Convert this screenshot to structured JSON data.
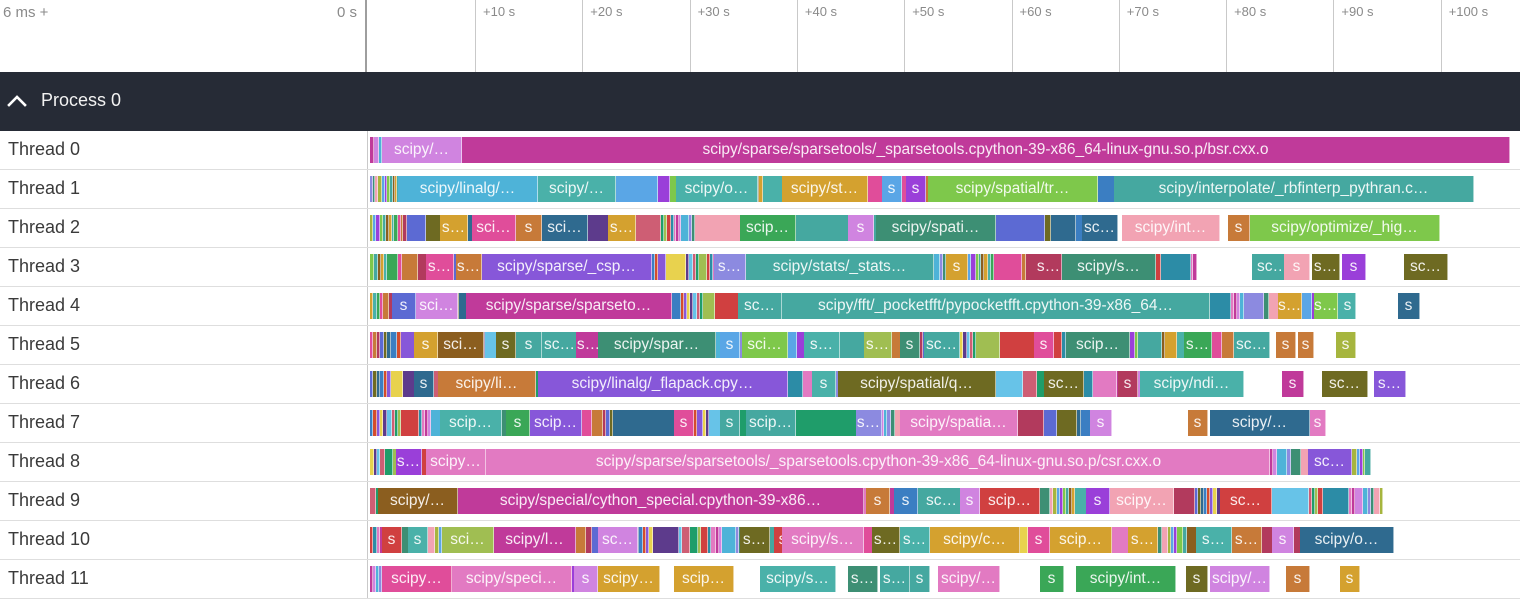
{
  "ruler": {
    "range_label": "6 ms +",
    "offset_label": "0 s",
    "ticks": [
      "+10 s",
      "+20 s",
      "+30 s",
      "+40 s",
      "+50 s",
      "+60 s",
      "+70 s",
      "+80 s",
      "+90 s",
      "+100 s"
    ]
  },
  "process": {
    "title": "Process 0",
    "collapse_icon": "chevron-up-icon"
  },
  "palette": [
    "#c03a9a",
    "#d084e0",
    "#4eb3d8",
    "#8c8ae0",
    "#3d8f74",
    "#f2a3b3",
    "#a6b53e",
    "#5aa6e6",
    "#9a3fd9",
    "#7ec84b",
    "#45a8a0",
    "#8b5e1f",
    "#d4a12f",
    "#4ab1a9",
    "#3aa757",
    "#e04d9a",
    "#c77a39",
    "#b23a5d",
    "#5c6ad3",
    "#6e6a22",
    "#2f6a8f",
    "#3b7ec2",
    "#d44c2c",
    "#8757d9",
    "#e8d24e",
    "#5d3b8c",
    "#67c3e8",
    "#ce5e74",
    "#1f9d6a",
    "#a0be52",
    "#d04040",
    "#2c8ca6",
    "#e27ac2"
  ],
  "threads": [
    {
      "label": "Thread 0",
      "segments": [
        {
          "t": "scipy/…"
        },
        {
          "t": "scipy/sparse/sparsetools/_sparsetools.cpython-39-x86_64-linux-gnu.so.p/bsr.cxx.o"
        }
      ]
    },
    {
      "label": "Thread 1",
      "segments": [
        {
          "t": "scipy/linalg/…"
        },
        {
          "t": "scipy/…"
        },
        {
          "t": "scipy/o…"
        },
        {
          "t": "scipy/st…"
        },
        {
          "t": "s"
        },
        {
          "t": "s"
        },
        {
          "t": "scipy/spatial/tr…"
        },
        {
          "t": "scipy/interpolate/_rbfinterp_pythran.c…"
        }
      ]
    },
    {
      "label": "Thread 2",
      "segments": [
        {
          "t": "s…"
        },
        {
          "t": "sci…"
        },
        {
          "t": "s"
        },
        {
          "t": "sci…"
        },
        {
          "t": "s…"
        },
        {
          "t": "scip…"
        },
        {
          "t": "s"
        },
        {
          "t": "scipy/spati…"
        },
        {
          "t": "sc…"
        },
        {
          "t": "scipy/int…"
        },
        {
          "t": "s"
        },
        {
          "t": "scipy/optimize/_hig…"
        }
      ]
    },
    {
      "label": "Thread 3",
      "segments": [
        {
          "t": "s…"
        },
        {
          "t": "s…"
        },
        {
          "t": "scipy/sparse/_csp…"
        },
        {
          "t": "s…"
        },
        {
          "t": "scipy/stats/_stats…"
        },
        {
          "t": "s"
        },
        {
          "t": "s…"
        },
        {
          "t": "scipy/s…"
        },
        {
          "t": "sc…"
        },
        {
          "t": "s"
        },
        {
          "t": "s…"
        },
        {
          "t": "s"
        },
        {
          "t": "sc…"
        }
      ]
    },
    {
      "label": "Thread 4",
      "segments": [
        {
          "t": "s"
        },
        {
          "t": "sci…"
        },
        {
          "t": "scipy/sparse/sparseto…"
        },
        {
          "t": "sc…"
        },
        {
          "t": "scipy/fft/_pocketfft/pypocketfft.cpython-39-x86_64…"
        },
        {
          "t": "s…"
        },
        {
          "t": "s…"
        },
        {
          "t": "s"
        },
        {
          "t": "s"
        }
      ]
    },
    {
      "label": "Thread 5",
      "segments": [
        {
          "t": "s"
        },
        {
          "t": "sci…"
        },
        {
          "t": "s"
        },
        {
          "t": "s"
        },
        {
          "t": "sc…"
        },
        {
          "t": "s…"
        },
        {
          "t": "scipy/spar…"
        },
        {
          "t": "s"
        },
        {
          "t": "sci…"
        },
        {
          "t": "s…"
        },
        {
          "t": "s…"
        },
        {
          "t": "s"
        },
        {
          "t": "sc…"
        },
        {
          "t": "s"
        },
        {
          "t": "scip…"
        },
        {
          "t": "s…"
        },
        {
          "t": "sc…"
        },
        {
          "t": "s"
        },
        {
          "t": "s"
        },
        {
          "t": "s"
        }
      ]
    },
    {
      "label": "Thread 6",
      "segments": [
        {
          "t": "s"
        },
        {
          "t": "scipy/li…"
        },
        {
          "t": "scipy/linalg/_flapack.cpy…"
        },
        {
          "t": "s"
        },
        {
          "t": "scipy/spatial/q…"
        },
        {
          "t": "sc…"
        },
        {
          "t": "s"
        },
        {
          "t": "scipy/ndi…"
        },
        {
          "t": "s"
        },
        {
          "t": "sc…"
        },
        {
          "t": "s…"
        }
      ]
    },
    {
      "label": "Thread 7",
      "segments": [
        {
          "t": "scip…"
        },
        {
          "t": "s"
        },
        {
          "t": "scip…"
        },
        {
          "t": "s"
        },
        {
          "t": "s"
        },
        {
          "t": "scip…"
        },
        {
          "t": "s…"
        },
        {
          "t": "scipy/spatia…"
        },
        {
          "t": "s"
        },
        {
          "t": "s"
        },
        {
          "t": "s"
        },
        {
          "t": "scipy/…"
        },
        {
          "t": "s"
        }
      ]
    },
    {
      "label": "Thread 8",
      "segments": [
        {
          "t": "s…"
        },
        {
          "t": "scipy…"
        },
        {
          "t": "scipy/sparse/sparsetools/_sparsetools.cpython-39-x86_64-linux-gnu.so.p/csr.cxx.o"
        },
        {
          "t": "sc…"
        }
      ]
    },
    {
      "label": "Thread 9",
      "segments": [
        {
          "t": "scipy/…"
        },
        {
          "t": "scipy/special/cython_special.cpython-39-x86…"
        },
        {
          "t": "s"
        },
        {
          "t": "s"
        },
        {
          "t": "sc…"
        },
        {
          "t": "s"
        },
        {
          "t": "scip…"
        },
        {
          "t": "s"
        },
        {
          "t": "scipy…"
        },
        {
          "t": "sc…"
        }
      ]
    },
    {
      "label": "Thread 10",
      "segments": [
        {
          "t": "s"
        },
        {
          "t": "s"
        },
        {
          "t": "sci…"
        },
        {
          "t": "scipy/l…"
        },
        {
          "t": "sc…"
        },
        {
          "t": "s…"
        },
        {
          "t": "s"
        },
        {
          "t": "scipy/s…"
        },
        {
          "t": "s…"
        },
        {
          "t": "s…"
        },
        {
          "t": "scipy/c…"
        },
        {
          "t": "s"
        },
        {
          "t": "scip…"
        },
        {
          "t": "s…"
        },
        {
          "t": "s…"
        },
        {
          "t": "s…"
        },
        {
          "t": "s"
        },
        {
          "t": "scipy/o…"
        }
      ]
    },
    {
      "label": "Thread 11",
      "segments": [
        {
          "t": "scipy…"
        },
        {
          "t": "scipy/speci…"
        },
        {
          "t": "s"
        },
        {
          "t": "scipy…"
        },
        {
          "t": "scip…"
        },
        {
          "t": "scipy/s…"
        },
        {
          "t": "s…"
        },
        {
          "t": "s…"
        },
        {
          "t": "s"
        },
        {
          "t": "scipy/…"
        },
        {
          "t": "s"
        },
        {
          "t": "scipy/int…"
        },
        {
          "t": "s"
        },
        {
          "t": "scipy/…"
        },
        {
          "t": "s"
        },
        {
          "t": "s"
        }
      ]
    }
  ]
}
